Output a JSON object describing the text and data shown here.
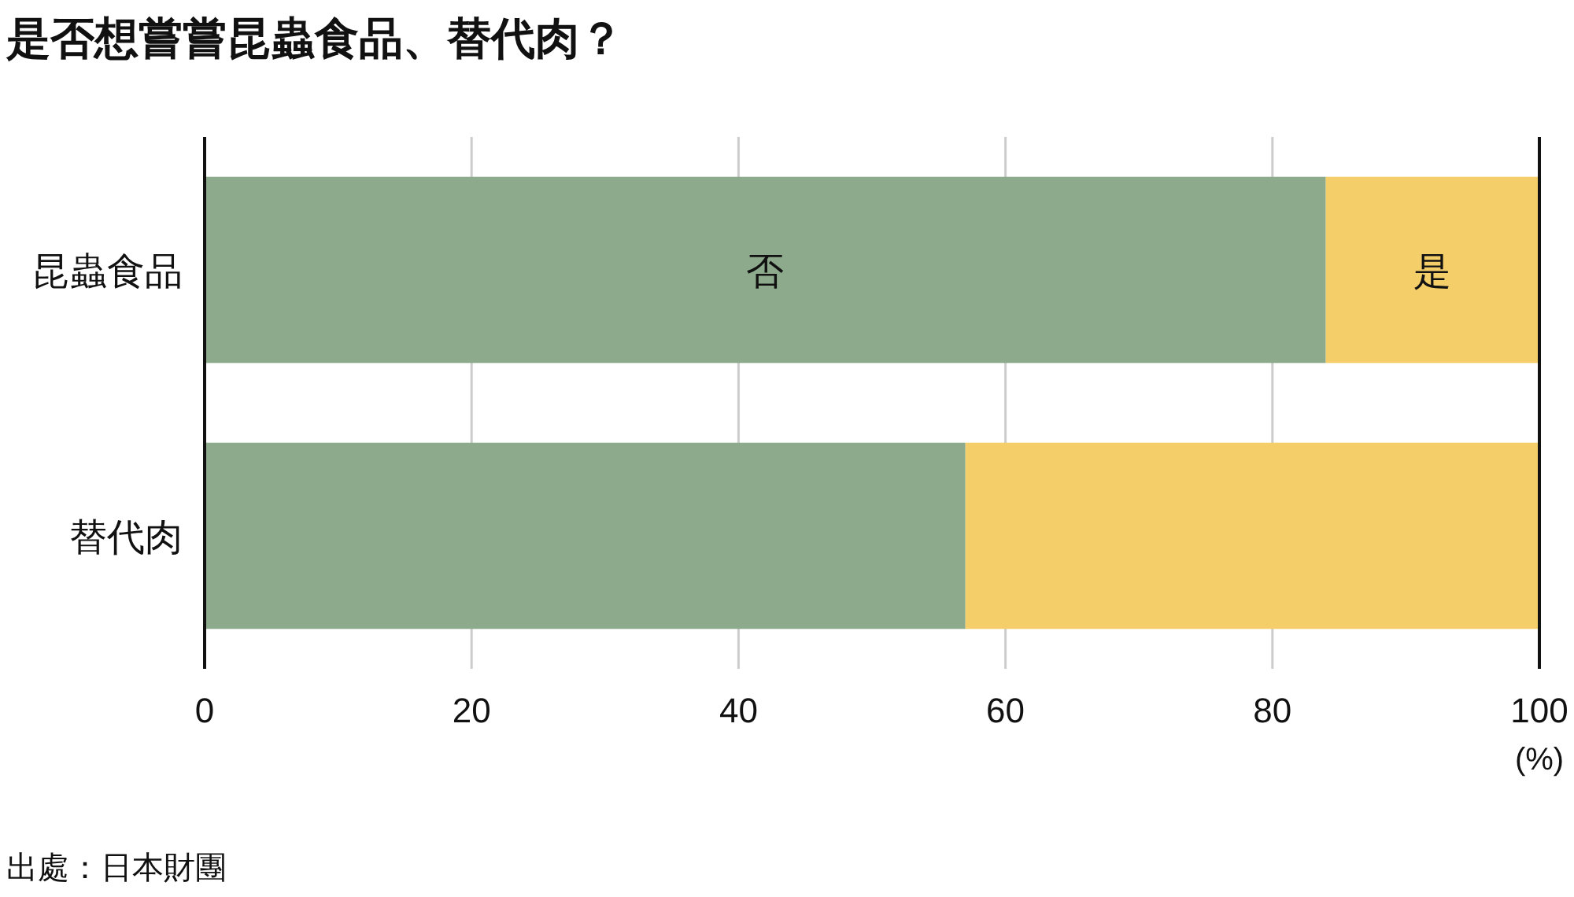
{
  "chart_data": {
    "type": "bar",
    "orientation": "horizontal",
    "stacked": true,
    "title": "是否想嘗嘗昆蟲食品、替代肉？",
    "xlabel": "(%)",
    "categories": [
      "昆蟲食品",
      "替代肉"
    ],
    "series": [
      {
        "name": "否",
        "color": "#8dab8c",
        "values": [
          84,
          57
        ]
      },
      {
        "name": "是",
        "color": "#f4ce69",
        "values": [
          16,
          43
        ]
      }
    ],
    "xlim": [
      0,
      100
    ],
    "xticks": [
      0,
      20,
      40,
      60,
      80,
      100
    ],
    "grid": "x",
    "annotations": [
      "出處：日本財團"
    ]
  }
}
